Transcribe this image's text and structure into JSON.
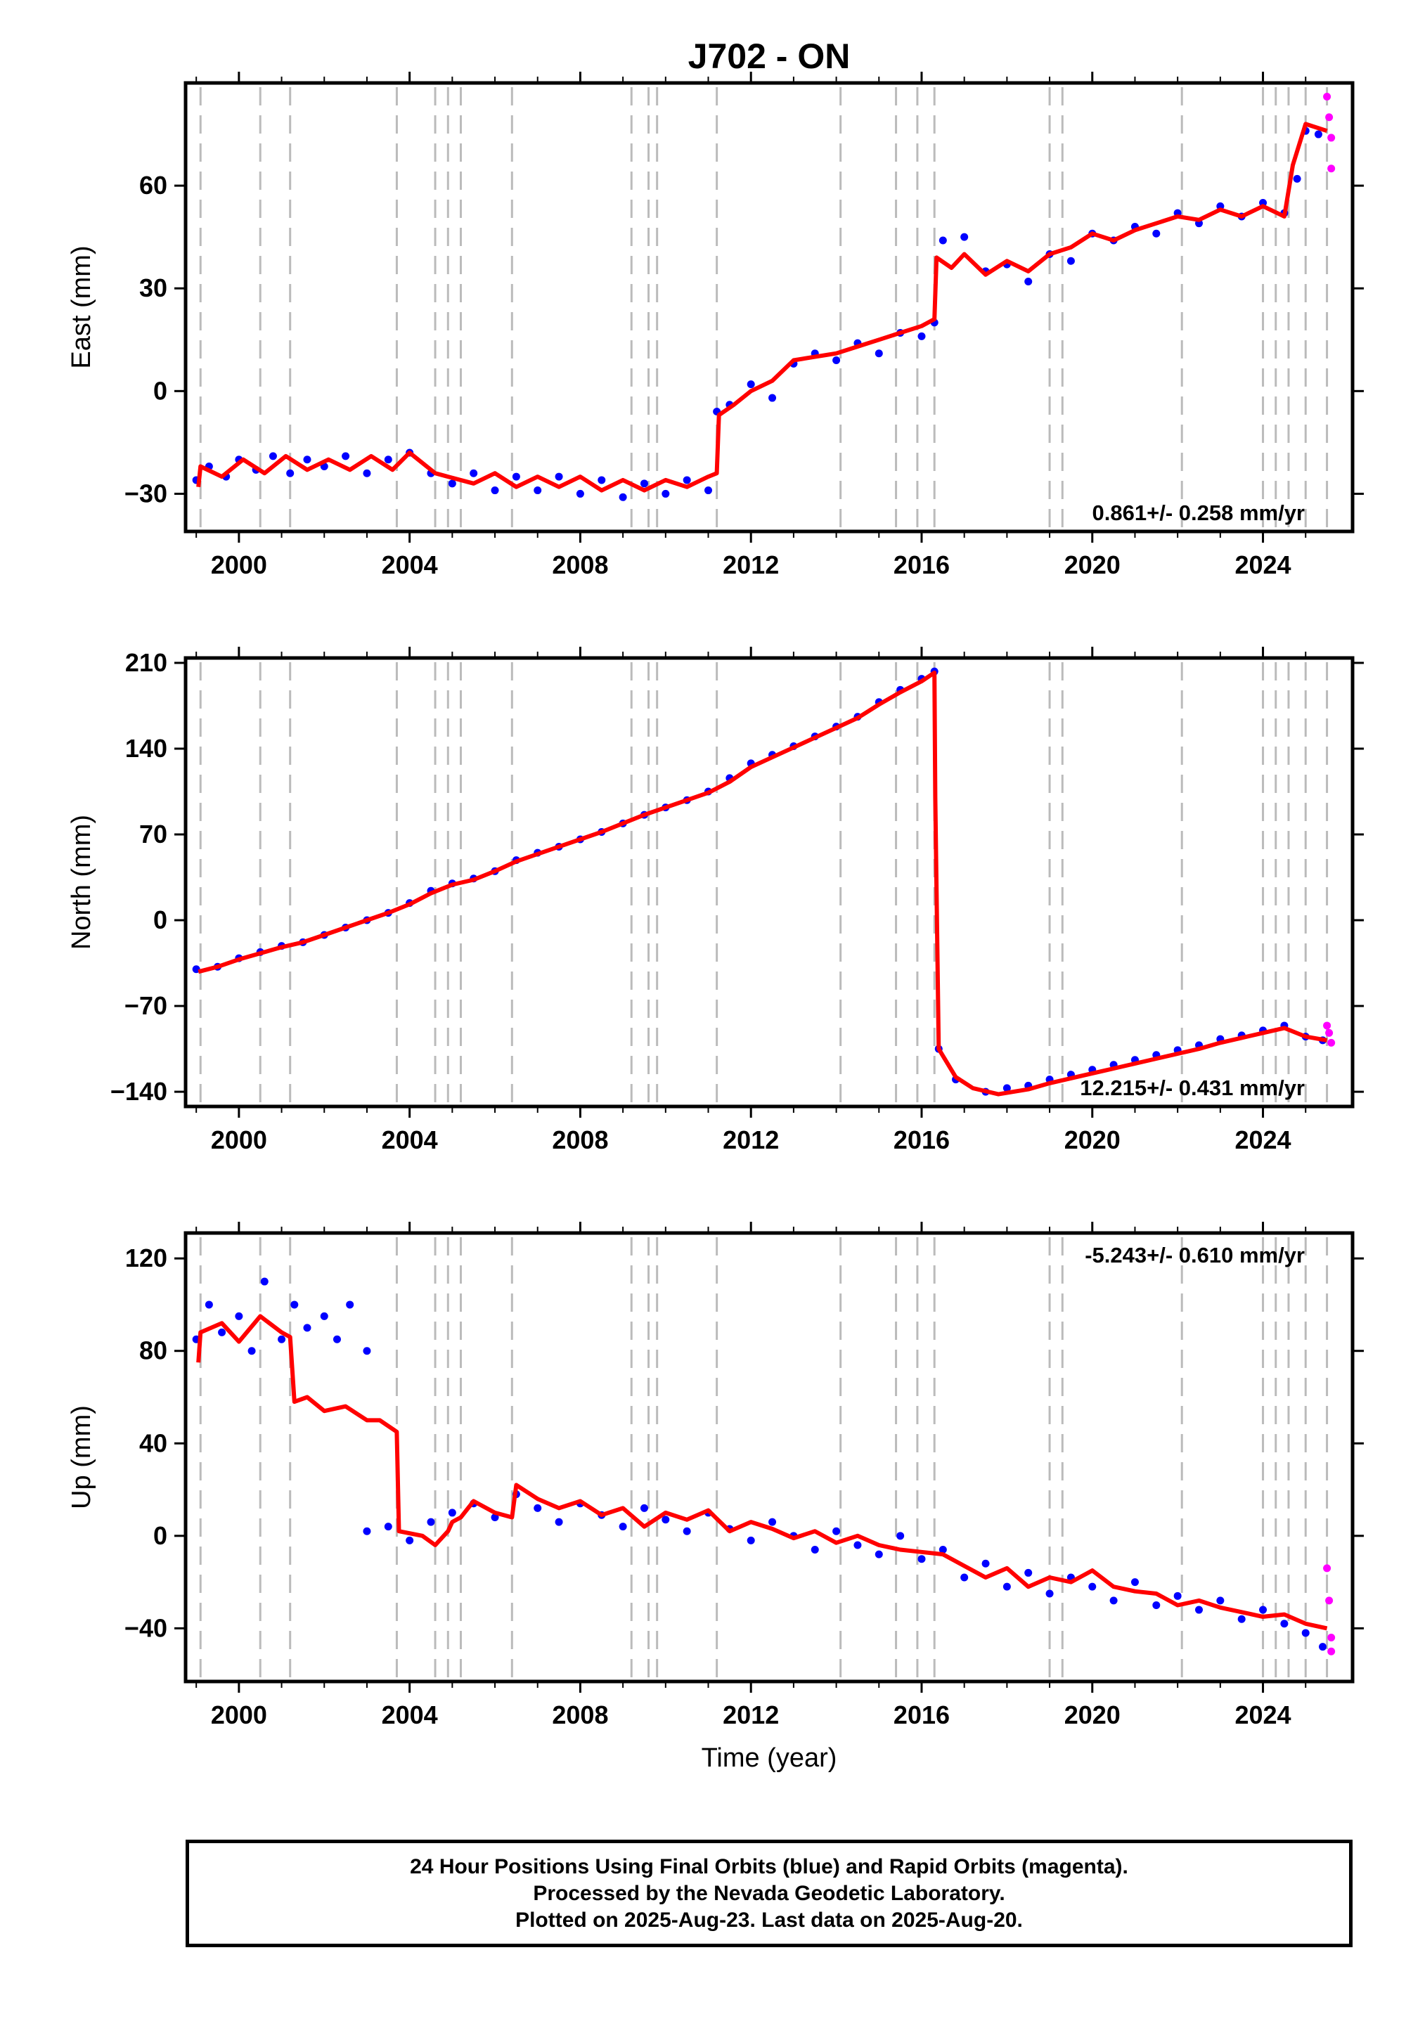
{
  "chart_data": {
    "type": "scatter",
    "title": "J702 - ON",
    "xlabel": "Time (year)",
    "xlim": [
      1998.75,
      2026.1
    ],
    "x_ticks": [
      2000,
      2004,
      2008,
      2012,
      2016,
      2020,
      2024
    ],
    "event_lines": [
      1999.1,
      2000.5,
      2001.2,
      2003.7,
      2004.6,
      2004.9,
      2005.2,
      2006.4,
      2009.2,
      2009.6,
      2009.8,
      2011.2,
      2014.1,
      2015.4,
      2015.9,
      2016.3,
      2019.0,
      2019.3,
      2022.1,
      2024.0,
      2024.3,
      2024.6,
      2025.0,
      2025.5
    ],
    "point_color": "#0000ff",
    "rapid_color": "#ff00ff",
    "model_color": "#ff0000",
    "panels": [
      {
        "ylabel": "East (mm)",
        "ylim": [
          -41,
          90
        ],
        "y_ticks": [
          -30,
          0,
          30,
          60
        ],
        "y_tick_labels": [
          "−30",
          "0",
          "30",
          "60"
        ],
        "rate_label": "0.861+/- 0.258 mm/yr",
        "rate_position": "bottom-right",
        "points_x": [
          1999.0,
          1999.3,
          1999.7,
          2000.0,
          2000.4,
          2000.8,
          2001.2,
          2001.6,
          2002.0,
          2002.5,
          2003.0,
          2003.5,
          2004.0,
          2004.5,
          2005.0,
          2005.5,
          2006.0,
          2006.5,
          2007.0,
          2007.5,
          2008.0,
          2008.5,
          2009.0,
          2009.5,
          2010.0,
          2010.5,
          2011.0,
          2011.2,
          2011.5,
          2012.0,
          2012.5,
          2013.0,
          2013.5,
          2014.0,
          2014.5,
          2015.0,
          2015.5,
          2016.0,
          2016.3,
          2016.5,
          2017.0,
          2017.5,
          2018.0,
          2018.5,
          2019.0,
          2019.5,
          2020.0,
          2020.5,
          2021.0,
          2021.5,
          2022.0,
          2022.5,
          2023.0,
          2023.5,
          2024.0,
          2024.5,
          2024.8,
          2025.0,
          2025.3
        ],
        "points_y": [
          -26,
          -22,
          -25,
          -20,
          -23,
          -19,
          -24,
          -20,
          -22,
          -19,
          -24,
          -20,
          -18,
          -24,
          -27,
          -24,
          -29,
          -25,
          -29,
          -25,
          -30,
          -26,
          -31,
          -27,
          -30,
          -26,
          -29,
          -6,
          -4,
          2,
          -2,
          8,
          11,
          9,
          14,
          11,
          17,
          16,
          20,
          44,
          45,
          35,
          37,
          32,
          40,
          38,
          46,
          44,
          48,
          46,
          52,
          49,
          54,
          51,
          55,
          52,
          62,
          76,
          75
        ],
        "rapid_x": [
          2025.5,
          2025.55,
          2025.6,
          2025.6
        ],
        "rapid_y": [
          86,
          80,
          74,
          65
        ],
        "model_x": [
          1999.05,
          1999.1,
          1999.6,
          2000.1,
          2000.6,
          2001.1,
          2001.6,
          2002.1,
          2002.6,
          2003.1,
          2003.6,
          2004.0,
          2004.6,
          2004.9,
          2005.5,
          2006.0,
          2006.5,
          2007.0,
          2007.5,
          2008.0,
          2008.5,
          2009.0,
          2009.5,
          2010.0,
          2010.5,
          2011.0,
          2011.2,
          2011.25,
          2011.6,
          2012.0,
          2012.5,
          2013.0,
          2013.5,
          2014.0,
          2014.5,
          2015.0,
          2015.5,
          2016.0,
          2016.3,
          2016.35,
          2016.7,
          2017.0,
          2017.5,
          2018.0,
          2018.5,
          2019.0,
          2019.5,
          2020.0,
          2020.5,
          2021.0,
          2021.5,
          2022.0,
          2022.5,
          2023.0,
          2023.5,
          2024.0,
          2024.5,
          2024.7,
          2025.0,
          2025.5
        ],
        "model_y": [
          -28,
          -22,
          -25,
          -20,
          -24,
          -19,
          -23,
          -20,
          -23,
          -19,
          -23,
          -18,
          -24,
          -25,
          -27,
          -24,
          -28,
          -25,
          -28,
          -25,
          -29,
          -26,
          -29,
          -26,
          -28,
          -25,
          -24,
          -7,
          -4,
          0,
          3,
          9,
          10,
          11,
          13,
          15,
          17,
          19,
          21,
          39,
          36,
          40,
          34,
          38,
          35,
          40,
          42,
          46,
          44,
          47,
          49,
          51,
          50,
          53,
          51,
          54,
          51,
          66,
          78,
          76
        ]
      },
      {
        "ylabel": "North (mm)",
        "ylim": [
          -152,
          214
        ],
        "y_ticks": [
          -140,
          -70,
          0,
          70,
          140,
          210
        ],
        "y_tick_labels": [
          "−140",
          "−70",
          "0",
          "70",
          "140",
          "210"
        ],
        "rate_label": "12.215+/- 0.431 mm/yr",
        "rate_position": "bottom-right",
        "points_x": [
          1999.0,
          1999.5,
          2000.0,
          2000.5,
          2001.0,
          2001.5,
          2002.0,
          2002.5,
          2003.0,
          2003.5,
          2004.0,
          2004.5,
          2005.0,
          2005.5,
          2006.0,
          2006.5,
          2007.0,
          2007.5,
          2008.0,
          2008.5,
          2009.0,
          2009.5,
          2010.0,
          2010.5,
          2011.0,
          2011.5,
          2012.0,
          2012.5,
          2013.0,
          2013.5,
          2014.0,
          2014.5,
          2015.0,
          2015.5,
          2016.0,
          2016.3,
          2016.4,
          2016.8,
          2017.5,
          2018.0,
          2018.5,
          2019.0,
          2019.5,
          2020.0,
          2020.5,
          2021.0,
          2021.5,
          2022.0,
          2022.5,
          2023.0,
          2023.5,
          2024.0,
          2024.5,
          2025.0,
          2025.4
        ],
        "points_y": [
          -40,
          -38,
          -31,
          -26,
          -21,
          -18,
          -12,
          -6,
          0,
          6,
          14,
          24,
          30,
          34,
          40,
          49,
          55,
          60,
          66,
          72,
          79,
          86,
          92,
          98,
          105,
          116,
          128,
          135,
          142,
          150,
          158,
          166,
          178,
          188,
          197,
          203,
          -105,
          -130,
          -140,
          -137,
          -135,
          -130,
          -126,
          -122,
          -118,
          -114,
          -110,
          -106,
          -102,
          -97,
          -94,
          -90,
          -86,
          -95,
          -98
        ],
        "rapid_x": [
          2025.5,
          2025.55,
          2025.6
        ],
        "rapid_y": [
          -86,
          -92,
          -100
        ],
        "model_x": [
          1999.05,
          1999.5,
          2000.0,
          2000.5,
          2001.0,
          2001.5,
          2002.0,
          2002.5,
          2003.0,
          2003.5,
          2004.0,
          2004.5,
          2005.0,
          2005.5,
          2006.0,
          2006.5,
          2007.0,
          2007.5,
          2008.0,
          2008.5,
          2009.0,
          2009.5,
          2010.0,
          2010.5,
          2011.0,
          2011.5,
          2012.0,
          2012.5,
          2013.0,
          2013.5,
          2014.0,
          2014.5,
          2015.0,
          2015.5,
          2016.0,
          2016.3,
          2016.32,
          2016.4,
          2016.8,
          2017.2,
          2017.8,
          2018.5,
          2019.0,
          2019.5,
          2020.0,
          2020.5,
          2021.0,
          2021.5,
          2022.0,
          2022.5,
          2023.0,
          2023.5,
          2024.0,
          2024.5,
          2025.0,
          2025.5
        ],
        "model_y": [
          -42,
          -38,
          -32,
          -27,
          -22,
          -18,
          -12,
          -6,
          0,
          6,
          13,
          22,
          29,
          33,
          40,
          48,
          54,
          60,
          66,
          72,
          79,
          86,
          92,
          98,
          104,
          113,
          125,
          133,
          141,
          149,
          157,
          165,
          176,
          186,
          195,
          202,
          100,
          -105,
          -128,
          -137,
          -142,
          -138,
          -133,
          -129,
          -125,
          -121,
          -117,
          -113,
          -109,
          -105,
          -100,
          -96,
          -92,
          -88,
          -95,
          -98
        ]
      },
      {
        "ylabel": "Up (mm)",
        "ylim": [
          -63,
          131
        ],
        "y_ticks": [
          -40,
          0,
          40,
          80,
          120
        ],
        "y_tick_labels": [
          "−40",
          "0",
          "40",
          "80",
          "120"
        ],
        "rate_label": "-5.243+/- 0.610 mm/yr",
        "rate_position": "top-right",
        "points_x": [
          1999.0,
          1999.3,
          1999.6,
          2000.0,
          2000.3,
          2000.6,
          2001.0,
          2001.3,
          2001.6,
          2002.0,
          2002.3,
          2002.6,
          2003.0,
          2003.0,
          2003.5,
          2004.0,
          2004.5,
          2005.0,
          2005.5,
          2006.0,
          2006.5,
          2007.0,
          2007.5,
          2008.0,
          2008.5,
          2009.0,
          2009.5,
          2010.0,
          2010.5,
          2011.0,
          2011.5,
          2012.0,
          2012.5,
          2013.0,
          2013.5,
          2014.0,
          2014.5,
          2015.0,
          2015.5,
          2016.0,
          2016.5,
          2017.0,
          2017.5,
          2018.0,
          2018.5,
          2019.0,
          2019.5,
          2020.0,
          2020.5,
          2021.0,
          2021.5,
          2022.0,
          2022.5,
          2023.0,
          2023.5,
          2024.0,
          2024.5,
          2025.0,
          2025.4
        ],
        "points_y": [
          85,
          100,
          88,
          95,
          80,
          110,
          85,
          100,
          90,
          95,
          85,
          100,
          80,
          2,
          4,
          -2,
          6,
          10,
          14,
          8,
          18,
          12,
          6,
          14,
          9,
          4,
          12,
          7,
          2,
          10,
          3,
          -2,
          6,
          0,
          -6,
          2,
          -4,
          -8,
          0,
          -10,
          -6,
          -18,
          -12,
          -22,
          -16,
          -25,
          -18,
          -22,
          -28,
          -20,
          -30,
          -26,
          -32,
          -28,
          -36,
          -32,
          -38,
          -42,
          -48
        ],
        "rapid_x": [
          2025.5,
          2025.55,
          2025.6,
          2025.6
        ],
        "rapid_y": [
          -14,
          -28,
          -44,
          -50
        ],
        "model_x": [
          1999.05,
          1999.1,
          1999.6,
          2000.0,
          2000.5,
          2001.0,
          2001.2,
          2001.3,
          2001.6,
          2002.0,
          2002.5,
          2003.0,
          2003.3,
          2003.7,
          2003.75,
          2004.3,
          2004.6,
          2004.9,
          2005.0,
          2005.2,
          2005.5,
          2006.0,
          2006.4,
          2006.5,
          2007.0,
          2007.5,
          2008.0,
          2008.5,
          2009.0,
          2009.5,
          2010.0,
          2010.5,
          2011.0,
          2011.5,
          2012.0,
          2012.5,
          2013.0,
          2013.5,
          2014.0,
          2014.5,
          2015.0,
          2015.5,
          2016.0,
          2016.5,
          2017.0,
          2017.5,
          2018.0,
          2018.5,
          2019.0,
          2019.5,
          2020.0,
          2020.5,
          2021.0,
          2021.5,
          2022.0,
          2022.5,
          2023.0,
          2023.5,
          2024.0,
          2024.5,
          2025.0,
          2025.5
        ],
        "model_y": [
          75,
          88,
          92,
          84,
          95,
          88,
          86,
          58,
          60,
          54,
          56,
          50,
          50,
          45,
          2,
          0,
          -4,
          2,
          6,
          8,
          15,
          10,
          8,
          22,
          16,
          12,
          15,
          9,
          12,
          4,
          10,
          7,
          11,
          2,
          6,
          3,
          -1,
          2,
          -3,
          0,
          -4,
          -6,
          -7,
          -8,
          -13,
          -18,
          -14,
          -22,
          -18,
          -20,
          -15,
          -22,
          -24,
          -25,
          -30,
          -28,
          -31,
          -33,
          -35,
          -34,
          -38,
          -40
        ]
      }
    ]
  },
  "caption": {
    "line1": "24 Hour Positions Using Final Orbits (blue) and Rapid Orbits (magenta).",
    "line2": "Processed by the Nevada Geodetic Laboratory.",
    "line3": "Plotted on 2025-Aug-23. Last data on 2025-Aug-20."
  }
}
